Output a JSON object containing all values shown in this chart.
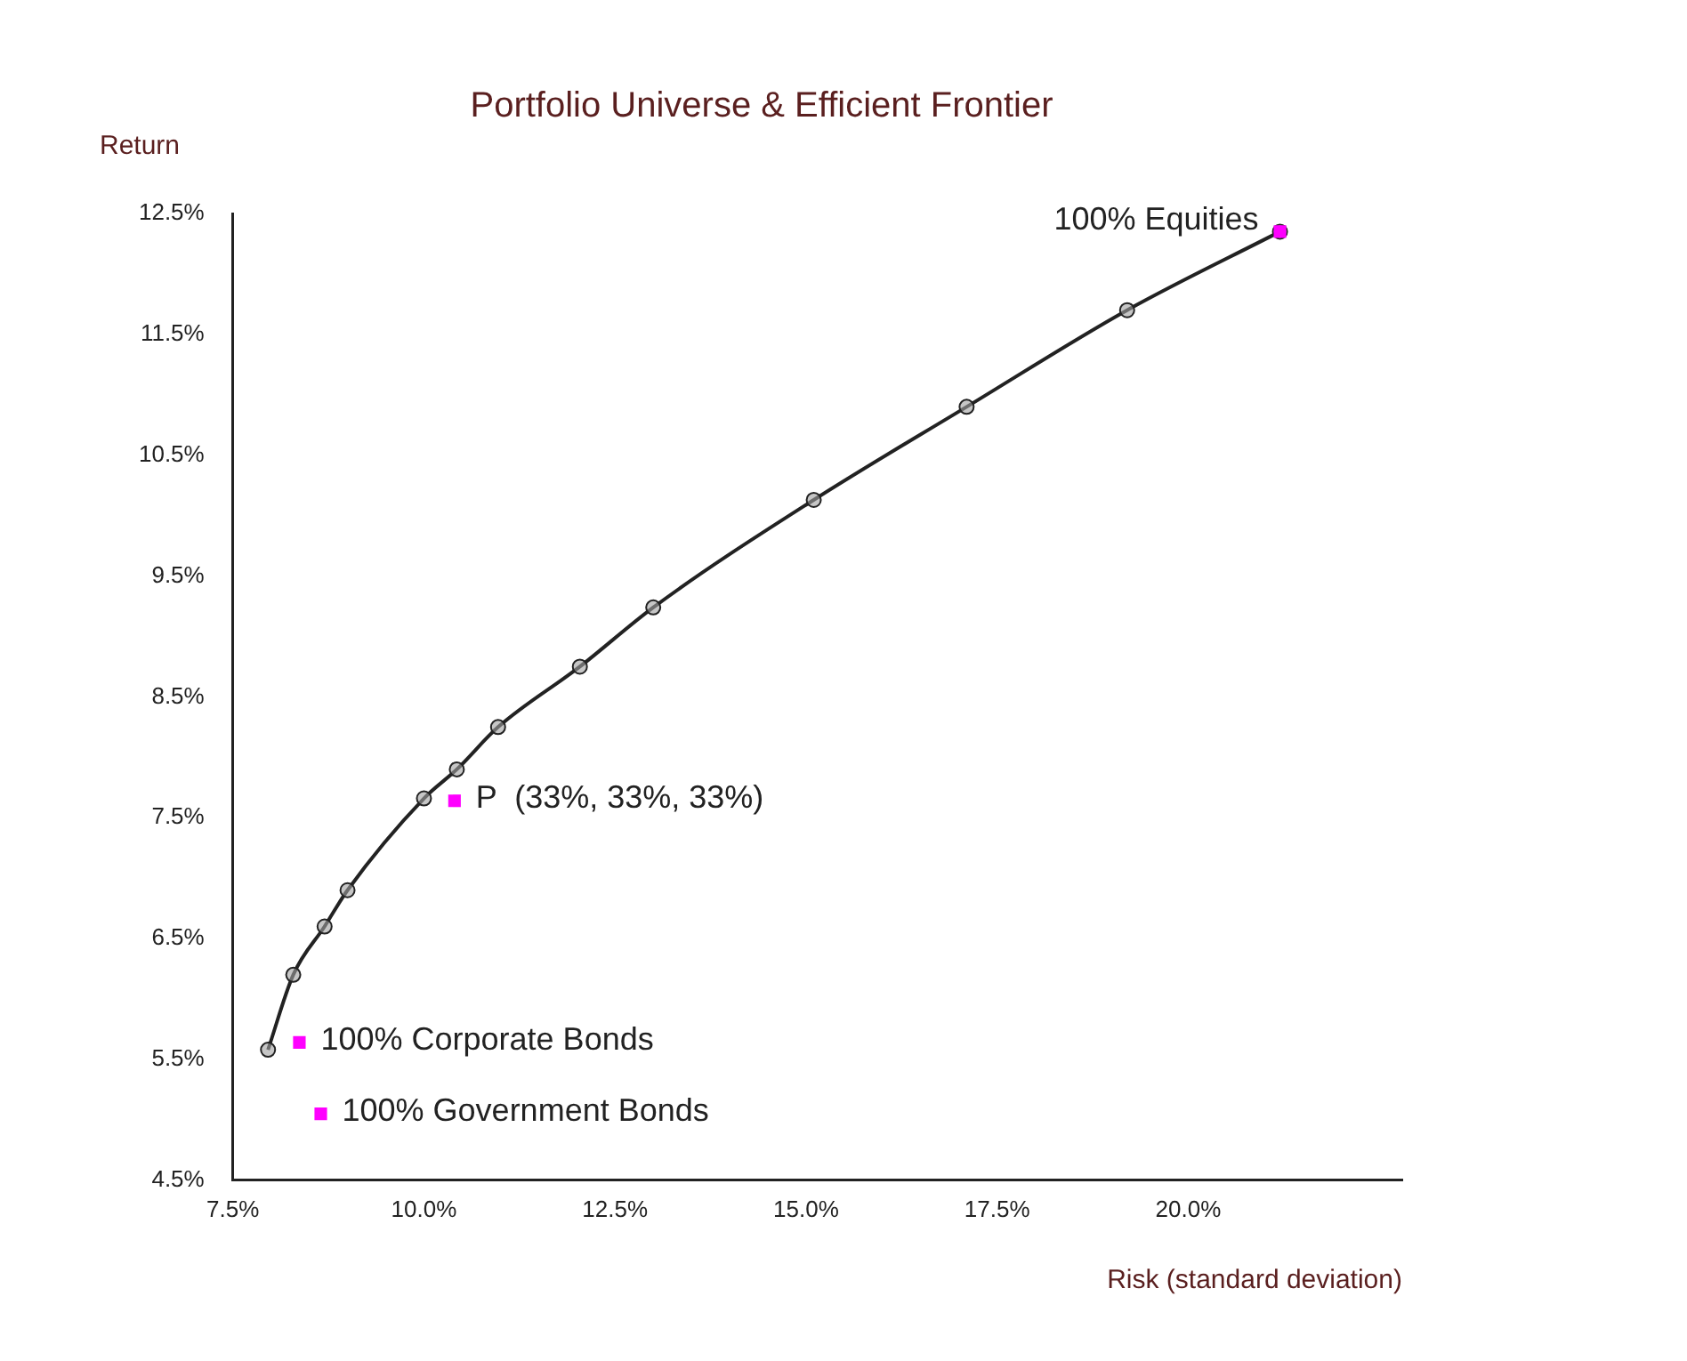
{
  "chart_data": {
    "type": "line",
    "title": "Portfolio Universe & Efficient Frontier",
    "xlabel": "Risk (standard deviation)",
    "ylabel": "Return",
    "xlim": [
      7.5,
      22.8
    ],
    "ylim": [
      4.5,
      12.5
    ],
    "xticks": [
      {
        "value": 7.5,
        "label": "7.5%"
      },
      {
        "value": 10,
        "label": "10.0%"
      },
      {
        "value": 12.5,
        "label": "12.5%"
      },
      {
        "value": 15,
        "label": "15.0%"
      },
      {
        "value": 17.5,
        "label": "17.5%"
      },
      {
        "value": 20,
        "label": "20.0%"
      }
    ],
    "yticks": [
      {
        "value": 4.5,
        "label": "4.5%"
      },
      {
        "value": 5.5,
        "label": "5.5%"
      },
      {
        "value": 6.5,
        "label": "6.5%"
      },
      {
        "value": 7.5,
        "label": "7.5%"
      },
      {
        "value": 8.5,
        "label": "8.5%"
      },
      {
        "value": 9.5,
        "label": "9.5%"
      },
      {
        "value": 10.5,
        "label": "10.5%"
      },
      {
        "value": 11.5,
        "label": "11.5%"
      },
      {
        "value": 12.5,
        "label": "12.5%"
      }
    ],
    "grid": false,
    "legend": false,
    "series": [
      {
        "color": "#222222",
        "marker": "circle",
        "line_style": "solid",
        "x": [
          7.96,
          8.29,
          8.7,
          9.0,
          10.0,
          10.43,
          10.97,
          12.04,
          13.0,
          15.1,
          17.1,
          19.2,
          21.2
        ],
        "values": [
          5.58,
          6.2,
          6.6,
          6.9,
          7.66,
          7.9,
          8.25,
          8.75,
          9.24,
          10.13,
          10.9,
          11.7,
          12.35
        ]
      },
      {
        "type": "scatter",
        "color": "#ff00ff",
        "marker": "square",
        "x": [
          21.2,
          10.4,
          8.37,
          8.65
        ],
        "values": [
          12.35,
          7.64,
          5.64,
          5.05
        ]
      }
    ],
    "annotations": [
      {
        "text": "100% Equities",
        "x": 21.2,
        "y": 12.35
      },
      {
        "text": "P  (33%, 33%, 33%)",
        "x": 10.4,
        "y": 7.64
      },
      {
        "text": "100% Corporate Bonds",
        "x": 8.37,
        "y": 5.64
      },
      {
        "text": "100% Government Bonds",
        "x": 8.65,
        "y": 5.05
      }
    ]
  }
}
